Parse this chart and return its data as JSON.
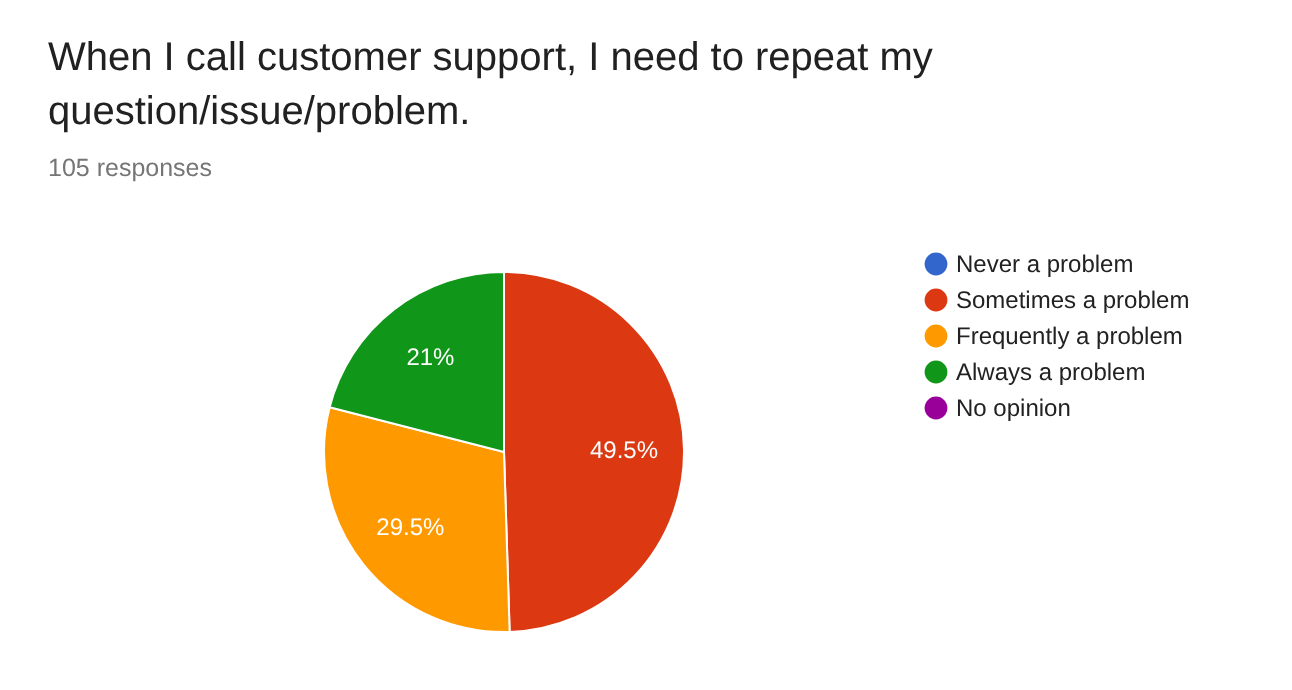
{
  "chart_data": {
    "type": "pie",
    "title": "When I call customer support, I need to repeat my question/issue/problem.",
    "subtitle": "105 responses",
    "categories": [
      "Never a problem",
      "Sometimes a problem",
      "Frequently a problem",
      "Always a problem",
      "No opinion"
    ],
    "values": [
      0,
      49.5,
      29.5,
      21,
      0
    ],
    "colors": [
      "#3366cc",
      "#dc3912",
      "#ff9900",
      "#109618",
      "#990099"
    ],
    "value_labels": [
      null,
      "49.5%",
      "29.5%",
      "21%",
      null
    ],
    "legend": "right"
  }
}
